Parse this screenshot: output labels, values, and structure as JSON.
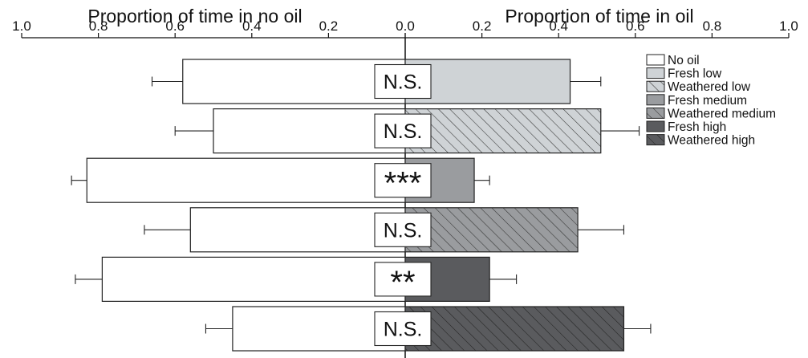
{
  "chart_data": {
    "type": "bar",
    "orientation": "horizontal-diverging",
    "left_axis": {
      "label": "Proportion of time in no oil",
      "ticks": [
        "1.0",
        "0.8",
        "0.6",
        "0.4",
        "0.2",
        "0.0"
      ],
      "range": [
        1.0,
        0.0
      ]
    },
    "right_axis": {
      "label": "Proportion of time in oil",
      "ticks": [
        "0.0",
        "0.2",
        "0.4",
        "0.6",
        "0.8",
        "1.0"
      ],
      "range": [
        0.0,
        1.0
      ]
    },
    "legend_placement": "top-right",
    "legend": [
      {
        "label": "No oil",
        "fill": "#ffffff",
        "hatch": false
      },
      {
        "label": "Fresh low",
        "fill": "#cfd3d6",
        "hatch": false
      },
      {
        "label": "Weathered low",
        "fill": "#cfd3d6",
        "hatch": true
      },
      {
        "label": "Fresh medium",
        "fill": "#9a9c9f",
        "hatch": false
      },
      {
        "label": "Weathered medium",
        "fill": "#9a9c9f",
        "hatch": true
      },
      {
        "label": "Fresh high",
        "fill": "#5a5b5e",
        "hatch": false
      },
      {
        "label": "Weathered high",
        "fill": "#5a5b5e",
        "hatch": true
      }
    ],
    "rows": [
      {
        "treatment": "Fresh low",
        "no_oil": 0.58,
        "no_oil_err": 0.08,
        "oil": 0.43,
        "oil_err": 0.08,
        "significance": "N.S."
      },
      {
        "treatment": "Weathered low",
        "no_oil": 0.5,
        "no_oil_err": 0.1,
        "oil": 0.51,
        "oil_err": 0.1,
        "significance": "N.S."
      },
      {
        "treatment": "Fresh medium",
        "no_oil": 0.83,
        "no_oil_err": 0.04,
        "oil": 0.18,
        "oil_err": 0.04,
        "significance": "***"
      },
      {
        "treatment": "Weathered medium",
        "no_oil": 0.56,
        "no_oil_err": 0.12,
        "oil": 0.45,
        "oil_err": 0.12,
        "significance": "N.S."
      },
      {
        "treatment": "Fresh high",
        "no_oil": 0.79,
        "no_oil_err": 0.07,
        "oil": 0.22,
        "oil_err": 0.07,
        "significance": "**"
      },
      {
        "treatment": "Weathered high",
        "no_oil": 0.45,
        "no_oil_err": 0.07,
        "oil": 0.57,
        "oil_err": 0.07,
        "significance": "N.S."
      }
    ],
    "colors": {
      "no_oil": "#ffffff",
      "fresh_low": "#cfd3d6",
      "fresh_medium": "#9a9c9f",
      "fresh_high": "#5a5b5e",
      "stroke": "#222222"
    }
  }
}
